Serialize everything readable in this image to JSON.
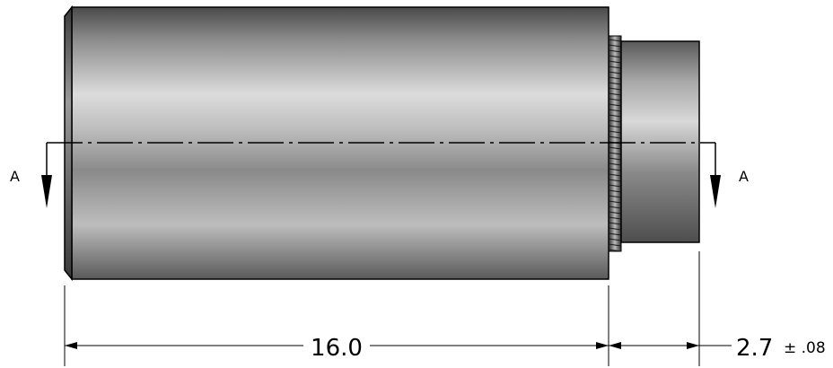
{
  "section": {
    "left_label": "A",
    "right_label": "A"
  },
  "dimensions": {
    "main_length": "16.0",
    "step_length": "2.7",
    "step_tolerance": "± .08"
  }
}
